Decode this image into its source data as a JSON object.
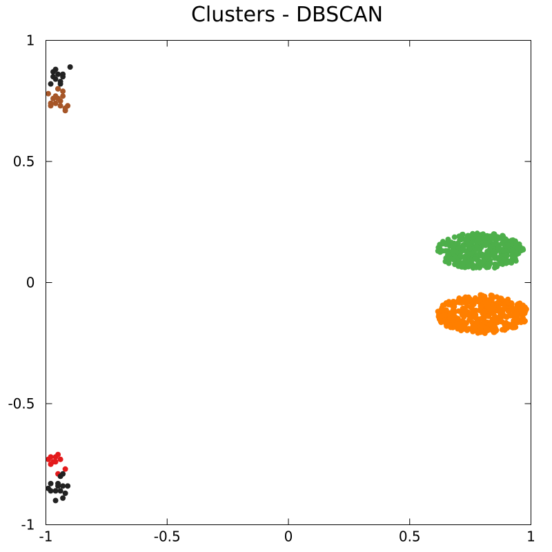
{
  "chart_data": {
    "type": "scatter",
    "title": "Clusters - DBSCAN",
    "xlabel": "",
    "ylabel": "",
    "xlim": [
      -1,
      1
    ],
    "ylim": [
      -1,
      1
    ],
    "grid": false,
    "legend": "none",
    "x_ticks": [
      {
        "value": -1,
        "label": "-1"
      },
      {
        "value": -0.5,
        "label": "-0.5"
      },
      {
        "value": 0,
        "label": "0"
      },
      {
        "value": 0.5,
        "label": "0.5"
      },
      {
        "value": 1,
        "label": "1"
      }
    ],
    "y_ticks": [
      {
        "value": 1,
        "label": "1"
      },
      {
        "value": 0.5,
        "label": "0.5"
      },
      {
        "value": 0,
        "label": "0"
      },
      {
        "value": -0.5,
        "label": "-0.5"
      },
      {
        "value": -1,
        "label": "-1"
      }
    ],
    "series": [
      {
        "color": "#222222",
        "points": [
          [
            -0.9,
            0.89
          ],
          [
            -0.93,
            0.85
          ],
          [
            -0.95,
            0.86
          ],
          [
            -0.96,
            0.88
          ],
          [
            -0.97,
            0.85
          ],
          [
            -0.94,
            0.83
          ],
          [
            -0.98,
            0.82
          ],
          [
            -0.95,
            0.8
          ],
          [
            -0.97,
            0.87
          ],
          [
            -0.93,
            0.86
          ],
          [
            -0.96,
            0.84
          ],
          [
            -0.94,
            0.82
          ]
        ]
      },
      {
        "color": "#a65628",
        "points": [
          [
            -0.99,
            0.78
          ],
          [
            -0.95,
            0.8
          ],
          [
            -0.93,
            0.79
          ],
          [
            -0.97,
            0.76
          ],
          [
            -0.95,
            0.76
          ],
          [
            -0.93,
            0.77
          ],
          [
            -0.98,
            0.74
          ],
          [
            -0.96,
            0.74
          ],
          [
            -0.94,
            0.73
          ],
          [
            -0.92,
            0.72
          ],
          [
            -0.91,
            0.73
          ],
          [
            -0.98,
            0.73
          ],
          [
            -0.92,
            0.71
          ],
          [
            -0.96,
            0.77
          ],
          [
            -0.94,
            0.75
          ]
        ]
      },
      {
        "color": "#e41a1c",
        "points": [
          [
            -0.99,
            -0.73
          ],
          [
            -0.96,
            -0.72
          ],
          [
            -0.94,
            -0.73
          ],
          [
            -0.98,
            -0.75
          ],
          [
            -0.96,
            -0.74
          ],
          [
            -0.97,
            -0.74
          ],
          [
            -0.92,
            -0.77
          ],
          [
            -0.95,
            -0.79
          ],
          [
            -0.95,
            -0.71
          ],
          [
            -0.98,
            -0.72
          ]
        ]
      },
      {
        "color": "#222222",
        "points": [
          [
            -0.94,
            -0.8
          ],
          [
            -0.93,
            -0.79
          ],
          [
            -0.98,
            -0.83
          ],
          [
            -0.95,
            -0.83
          ],
          [
            -0.93,
            -0.84
          ],
          [
            -0.91,
            -0.84
          ],
          [
            -0.99,
            -0.85
          ],
          [
            -0.96,
            -0.86
          ],
          [
            -0.94,
            -0.86
          ],
          [
            -0.92,
            -0.87
          ],
          [
            -0.98,
            -0.86
          ],
          [
            -0.93,
            -0.89
          ],
          [
            -0.96,
            -0.9
          ],
          [
            -0.95,
            -0.84
          ]
        ]
      },
      {
        "color": "#4daf4a",
        "generator": {
          "cx": 0.79,
          "cy": 0.13,
          "rx": 0.18,
          "ry": 0.075,
          "count": 360,
          "seed": 11
        }
      },
      {
        "color": "#ff7f00",
        "generator": {
          "cx": 0.8,
          "cy": -0.13,
          "rx": 0.19,
          "ry": 0.08,
          "count": 420,
          "seed": 29
        }
      }
    ]
  }
}
